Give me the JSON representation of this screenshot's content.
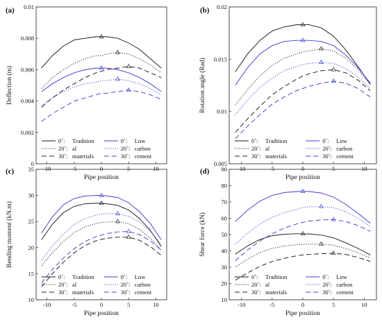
{
  "chart_data": [
    {
      "panel": "(a)",
      "type": "line",
      "xlabel": "Pipe position",
      "ylabel": "Deflection (m)",
      "xlim": [
        -12,
        12
      ],
      "ylim": [
        0,
        0.01
      ],
      "xticks": [
        -10,
        -5,
        0,
        5,
        10
      ],
      "xtick_labels": [
        "-10",
        "-5",
        "0",
        "5",
        "10"
      ],
      "yticks": [
        0,
        0.002,
        0.004,
        0.006,
        0.008,
        0.01
      ],
      "ytick_labels": [
        "0",
        "0.002",
        "0.004",
        "0.006",
        "0.008",
        "0.01"
      ],
      "x": [
        -11,
        -9,
        -7,
        -5,
        -3,
        -1,
        0,
        1,
        3,
        5,
        7,
        9,
        11
      ],
      "series": [
        {
          "group": "tradition",
          "style": "solid",
          "color": "#1a1a1a",
          "marker_at": 0,
          "values": [
            0.0061,
            0.0069,
            0.0075,
            0.0079,
            0.008,
            0.0081,
            0.0081,
            0.0081,
            0.008,
            0.0077,
            0.0073,
            0.0067,
            0.0061
          ]
        },
        {
          "group": "tradition",
          "style": "dotted",
          "color": "#1a1a1a",
          "marker_at": 3,
          "values": [
            0.0048,
            0.0055,
            0.006,
            0.0064,
            0.0067,
            0.0069,
            0.0069,
            0.007,
            0.0071,
            0.007,
            0.0067,
            0.0063,
            0.0058
          ]
        },
        {
          "group": "tradition",
          "style": "dashed",
          "color": "#1a1a1a",
          "marker_at": 5,
          "values": [
            0.0036,
            0.0042,
            0.0047,
            0.0051,
            0.0055,
            0.0058,
            0.0059,
            0.006,
            0.0061,
            0.0062,
            0.0061,
            0.0058,
            0.0055
          ]
        },
        {
          "group": "low_carbon",
          "style": "solid",
          "color": "#3f3fd0",
          "marker_at": 0,
          "values": [
            0.0046,
            0.0051,
            0.0055,
            0.0058,
            0.006,
            0.0061,
            0.0061,
            0.0061,
            0.006,
            0.0058,
            0.0055,
            0.0051,
            0.0046
          ]
        },
        {
          "group": "low_carbon",
          "style": "dotted",
          "color": "#3f3fd0",
          "marker_at": 3,
          "values": [
            0.0037,
            0.0042,
            0.0046,
            0.0049,
            0.0051,
            0.0052,
            0.0053,
            0.0053,
            0.0054,
            0.0053,
            0.0051,
            0.0048,
            0.0044
          ]
        },
        {
          "group": "low_carbon",
          "style": "dashed",
          "color": "#3f3fd0",
          "marker_at": 5,
          "values": [
            0.0027,
            0.0032,
            0.0036,
            0.004,
            0.0042,
            0.0044,
            0.0045,
            0.0045,
            0.0046,
            0.0047,
            0.0046,
            0.0044,
            0.0041
          ]
        }
      ]
    },
    {
      "panel": "(b)",
      "type": "line",
      "xlabel": "Pipe position",
      "ylabel": "Rotation angle (Rad)",
      "xlim": [
        -12,
        12
      ],
      "ylim": [
        0.005,
        0.02
      ],
      "xticks": [
        -10,
        -5,
        0,
        5,
        10
      ],
      "xtick_labels": [
        "-10",
        "-5",
        "0",
        "5",
        "10"
      ],
      "yticks": [
        0.005,
        0.01,
        0.015,
        0.02
      ],
      "ytick_labels": [
        "0.005",
        "0.01",
        "0.015",
        "0.02"
      ],
      "x": [
        -11,
        -9,
        -7,
        -5,
        -3,
        -1,
        0,
        1,
        3,
        5,
        7,
        9,
        11
      ],
      "series": [
        {
          "group": "tradition",
          "style": "solid",
          "color": "#1a1a1a",
          "marker_at": 0,
          "values": [
            0.0138,
            0.0155,
            0.0168,
            0.0177,
            0.0181,
            0.0183,
            0.0183,
            0.0183,
            0.018,
            0.0172,
            0.0159,
            0.0143,
            0.0126
          ]
        },
        {
          "group": "tradition",
          "style": "dotted",
          "color": "#1a1a1a",
          "marker_at": 3,
          "values": [
            0.0106,
            0.0121,
            0.0134,
            0.0144,
            0.0151,
            0.0155,
            0.0157,
            0.0158,
            0.016,
            0.0158,
            0.0151,
            0.014,
            0.0126
          ]
        },
        {
          "group": "tradition",
          "style": "dashed",
          "color": "#1a1a1a",
          "marker_at": 5,
          "values": [
            0.008,
            0.0093,
            0.0105,
            0.0116,
            0.0124,
            0.0131,
            0.0134,
            0.0136,
            0.0139,
            0.014,
            0.0137,
            0.013,
            0.012
          ]
        },
        {
          "group": "low_carbon",
          "style": "solid",
          "color": "#3f3fd0",
          "marker_at": 0,
          "values": [
            0.0125,
            0.0142,
            0.0155,
            0.0163,
            0.0167,
            0.0168,
            0.0168,
            0.0168,
            0.0167,
            0.0163,
            0.0154,
            0.0142,
            0.0127
          ]
        },
        {
          "group": "low_carbon",
          "style": "dotted",
          "color": "#3f3fd0",
          "marker_at": 3,
          "values": [
            0.0097,
            0.0111,
            0.0123,
            0.0132,
            0.0139,
            0.0143,
            0.0145,
            0.0146,
            0.0147,
            0.0146,
            0.0141,
            0.0133,
            0.0122
          ]
        },
        {
          "group": "low_carbon",
          "style": "dashed",
          "color": "#3f3fd0",
          "marker_at": 5,
          "values": [
            0.0074,
            0.0086,
            0.0097,
            0.0107,
            0.0114,
            0.012,
            0.0122,
            0.0124,
            0.0127,
            0.0129,
            0.0127,
            0.0122,
            0.0114
          ]
        }
      ]
    },
    {
      "panel": "(c)",
      "type": "line",
      "xlabel": "Pipe position",
      "ylabel": "Bending moment (kN.m)",
      "xlim": [
        -12,
        12
      ],
      "ylim": [
        10,
        35
      ],
      "xticks": [
        -10,
        -5,
        0,
        5,
        10
      ],
      "xtick_labels": [
        "-10",
        "-5",
        "0",
        "5",
        "10"
      ],
      "yticks": [
        10,
        15,
        20,
        25,
        30,
        35
      ],
      "ytick_labels": [
        "10",
        "15",
        "20",
        "25",
        "30",
        "35"
      ],
      "x": [
        -11,
        -9,
        -7,
        -5,
        -3,
        -1,
        0,
        1,
        3,
        5,
        7,
        9,
        11
      ],
      "series": [
        {
          "group": "tradition",
          "style": "solid",
          "color": "#1a1a1a",
          "marker_at": 0,
          "values": [
            21.5,
            24.5,
            26.7,
            27.9,
            28.4,
            28.5,
            28.5,
            28.4,
            28.1,
            27.2,
            25.6,
            23.3,
            20.2
          ]
        },
        {
          "group": "tradition",
          "style": "dotted",
          "color": "#1a1a1a",
          "marker_at": 3,
          "values": [
            16.5,
            19.0,
            21.2,
            22.9,
            24.0,
            24.6,
            24.8,
            24.9,
            25.0,
            24.6,
            23.5,
            21.8,
            19.5
          ]
        },
        {
          "group": "tradition",
          "style": "dashed",
          "color": "#1a1a1a",
          "marker_at": 5,
          "values": [
            12.5,
            15.0,
            17.2,
            19.0,
            20.4,
            21.3,
            21.6,
            21.8,
            22.0,
            22.0,
            21.4,
            20.2,
            18.5
          ]
        },
        {
          "group": "low_carbon",
          "style": "solid",
          "color": "#3f3fd0",
          "marker_at": 0,
          "values": [
            22.8,
            25.9,
            28.2,
            29.4,
            29.9,
            30.0,
            30.0,
            29.9,
            29.6,
            28.6,
            26.9,
            24.6,
            21.5
          ]
        },
        {
          "group": "low_carbon",
          "style": "dotted",
          "color": "#3f3fd0",
          "marker_at": 3,
          "values": [
            17.6,
            20.3,
            22.6,
            24.4,
            25.6,
            26.2,
            26.4,
            26.5,
            26.5,
            26.0,
            24.9,
            23.1,
            20.6
          ]
        },
        {
          "group": "low_carbon",
          "style": "dashed",
          "color": "#3f3fd0",
          "marker_at": 5,
          "values": [
            13.2,
            15.8,
            18.0,
            19.8,
            21.2,
            22.1,
            22.4,
            22.7,
            23.0,
            23.1,
            22.5,
            21.3,
            19.5
          ]
        }
      ]
    },
    {
      "panel": "(d)",
      "type": "line",
      "xlabel": "Pipe position",
      "ylabel": "Shear force (kN)",
      "xlim": [
        -12,
        12
      ],
      "ylim": [
        10,
        90
      ],
      "xticks": [
        -10,
        -5,
        0,
        5,
        10
      ],
      "xtick_labels": [
        "-10",
        "-5",
        "0",
        "5",
        "10"
      ],
      "yticks": [
        10,
        20,
        30,
        40,
        50,
        60,
        70,
        80,
        90
      ],
      "ytick_labels": [
        "10",
        "20",
        "30",
        "40",
        "50",
        "60",
        "70",
        "80",
        "90"
      ],
      "x": [
        -11,
        -9,
        -7,
        -5,
        -3,
        -1,
        0,
        1,
        3,
        5,
        7,
        9,
        11
      ],
      "series": [
        {
          "group": "tradition",
          "style": "solid",
          "color": "#1a1a1a",
          "marker_at": 0,
          "values": [
            38,
            43,
            47,
            49.3,
            50.2,
            50.5,
            50.5,
            50.4,
            49.7,
            48,
            45,
            41.5,
            37.5
          ]
        },
        {
          "group": "tradition",
          "style": "dotted",
          "color": "#1a1a1a",
          "marker_at": 3,
          "values": [
            30,
            35,
            39,
            41.5,
            43,
            43.8,
            44,
            44.1,
            44.2,
            43.5,
            41.5,
            38.8,
            35.5
          ]
        },
        {
          "group": "tradition",
          "style": "dashed",
          "color": "#1a1a1a",
          "marker_at": 5,
          "values": [
            22,
            26.5,
            30.5,
            33.5,
            35.5,
            37,
            37.5,
            37.8,
            38.3,
            38.5,
            37.8,
            36,
            33.5
          ]
        },
        {
          "group": "low_carbon",
          "style": "solid",
          "color": "#3f3fd0",
          "marker_at": 0,
          "values": [
            58,
            65,
            70.5,
            74,
            75.8,
            76.4,
            76.5,
            76.4,
            75.5,
            73,
            68.5,
            63,
            57
          ]
        },
        {
          "group": "low_carbon",
          "style": "dotted",
          "color": "#3f3fd0",
          "marker_at": 3,
          "values": [
            44,
            51,
            56.5,
            60.5,
            63.5,
            65.5,
            66.5,
            67,
            67.2,
            66.5,
            64,
            60,
            55
          ]
        },
        {
          "group": "low_carbon",
          "style": "dashed",
          "color": "#3f3fd0",
          "marker_at": 5,
          "values": [
            34,
            40.5,
            46,
            50.5,
            54,
            56.5,
            57.5,
            58.3,
            59,
            59.2,
            58,
            55.5,
            52
          ]
        }
      ]
    }
  ],
  "legend": {
    "placement": "lower-center",
    "rows": [
      {
        "style": "solid",
        "angle": "0˚:",
        "mid_word": "Tradition",
        "blue_angle": "0˚:",
        "blue_word": "Low"
      },
      {
        "style": "dotted",
        "angle": "20˚:",
        "mid_word": "al",
        "blue_angle": "20˚:",
        "blue_word": "carbon"
      },
      {
        "style": "dashed",
        "angle": "30˚:",
        "mid_word": "materials",
        "blue_angle": "30˚:",
        "blue_word": "cement"
      }
    ],
    "colors": {
      "tradition": "#1a1a1a",
      "low_carbon": "#3f3fd0"
    }
  }
}
